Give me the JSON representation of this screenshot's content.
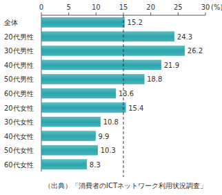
{
  "chart_data": {
    "type": "bar",
    "orientation": "horizontal",
    "categories": [
      "全体",
      "20代男性",
      "30代男性",
      "40代男性",
      "50代男性",
      "60代男性",
      "20代女性",
      "30代女性",
      "40代女性",
      "50代女性",
      "60代女性"
    ],
    "values": [
      15.2,
      24.3,
      26.2,
      21.9,
      18.8,
      13.6,
      15.4,
      10.8,
      9.9,
      10.3,
      8.3
    ],
    "color": "#2aa5ad",
    "xlim": [
      0,
      30
    ],
    "xticks": [
      0,
      5,
      10,
      15,
      20,
      25,
      30
    ],
    "xlabel": "(%)",
    "reference_line": 15,
    "data_labels": true,
    "source": "（出典）「消費者のICTネットワーク利用状況調査」"
  }
}
